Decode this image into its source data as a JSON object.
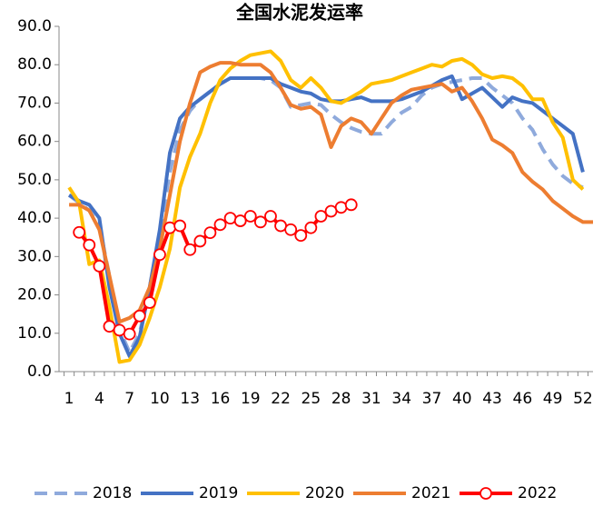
{
  "chart_data": {
    "type": "line",
    "title": "全国水泥发运率",
    "x": [
      1,
      2,
      3,
      4,
      5,
      6,
      7,
      8,
      9,
      10,
      11,
      12,
      13,
      14,
      15,
      16,
      17,
      18,
      19,
      20,
      21,
      22,
      23,
      24,
      25,
      26,
      27,
      28,
      29,
      30,
      31,
      32,
      33,
      34,
      35,
      36,
      37,
      38,
      39,
      40,
      41,
      42,
      43,
      44,
      45,
      46,
      47,
      48,
      49,
      50,
      51,
      52,
      53
    ],
    "xlim": [
      0,
      53
    ],
    "xticks": [
      1,
      4,
      7,
      10,
      13,
      16,
      19,
      22,
      25,
      28,
      31,
      34,
      37,
      40,
      43,
      46,
      49,
      52
    ],
    "ylim": [
      0,
      90
    ],
    "yticks": [
      {
        "value": 0,
        "label": "0.0"
      },
      {
        "value": 10,
        "label": "10.0"
      },
      {
        "value": 20,
        "label": "20.0"
      },
      {
        "value": 30,
        "label": "30.0"
      },
      {
        "value": 40,
        "label": "40.0"
      },
      {
        "value": 50,
        "label": "50.0"
      },
      {
        "value": 60,
        "label": "60.0"
      },
      {
        "value": 70,
        "label": "70.0"
      },
      {
        "value": 80,
        "label": "80.0"
      },
      {
        "value": 90,
        "label": "90.0"
      }
    ],
    "legend": "bottom",
    "series": [
      {
        "name": "2018",
        "color": "#8faadc",
        "style": "dashed",
        "values": [
          46,
          44,
          42,
          38,
          25,
          11,
          5,
          10,
          22,
          36,
          52,
          63,
          68,
          71,
          73,
          75,
          76.5,
          76.5,
          76.5,
          76.5,
          76,
          74,
          69,
          69.5,
          70,
          69.5,
          67,
          65,
          63.5,
          62.5,
          62,
          62,
          65,
          67.5,
          69,
          72,
          74,
          75,
          75.5,
          76,
          76.5,
          76.5,
          74,
          72,
          70,
          66,
          63,
          58,
          54,
          51,
          49,
          48,
          null
        ]
      },
      {
        "name": "2019",
        "color": "#4472c4",
        "values": [
          46,
          44.5,
          43.5,
          40,
          22,
          10,
          4,
          9,
          22,
          37,
          57,
          66,
          69,
          71,
          73,
          75,
          76.5,
          76.5,
          76.5,
          76.5,
          76.5,
          75,
          74,
          73,
          72.5,
          71,
          70.5,
          70.5,
          71,
          71.5,
          70.5,
          70.5,
          70.5,
          71,
          72,
          73,
          74.5,
          76,
          77,
          71,
          72.5,
          74,
          71.5,
          69,
          71.5,
          70.5,
          70,
          68,
          66,
          64,
          62,
          52,
          null
        ]
      },
      {
        "name": "2020",
        "color": "#ffc000",
        "values": [
          48,
          44,
          28,
          29,
          17,
          2.5,
          3,
          7,
          14,
          22,
          32,
          48,
          56,
          62,
          70,
          76,
          79,
          81,
          82.5,
          83,
          83.5,
          81,
          76,
          74,
          76.5,
          74,
          70.5,
          70,
          71.5,
          73,
          75,
          75.5,
          76,
          77,
          78,
          79,
          80,
          79.5,
          81,
          81.5,
          80,
          77.5,
          76.5,
          77,
          76.5,
          74.5,
          71,
          71,
          65,
          61,
          50,
          47.5,
          null
        ]
      },
      {
        "name": "2021",
        "color": "#ed7d31",
        "values": [
          43.5,
          43.5,
          42,
          37,
          25,
          13,
          14,
          16,
          22,
          32,
          46,
          60,
          70,
          78,
          79.5,
          80.5,
          80.5,
          80,
          80,
          80,
          78,
          74,
          69.5,
          68.5,
          69,
          67,
          58.5,
          64,
          66,
          65,
          62,
          66,
          70,
          72,
          73.5,
          74,
          74.5,
          75,
          73,
          74,
          70.5,
          66,
          60.5,
          59,
          57,
          52,
          49.5,
          47.5,
          44.5,
          42.5,
          40.5,
          39,
          39
        ]
      },
      {
        "name": "2022",
        "color": "#ff0000",
        "marker": true,
        "values": [
          null,
          36.3,
          33,
          27.5,
          11.8,
          10.8,
          9.8,
          14.5,
          18,
          30.5,
          37.5,
          38,
          31.8,
          34,
          36.2,
          38.3,
          40,
          39.3,
          40.5,
          39,
          40.5,
          38,
          37,
          35.5,
          37.5,
          40.5,
          41.8,
          42.8,
          43.5,
          null,
          null,
          null,
          null,
          null,
          null,
          null,
          null,
          null,
          null,
          null,
          null,
          null,
          null,
          null,
          null,
          null,
          null,
          null,
          null,
          null,
          null,
          null,
          null
        ]
      }
    ]
  }
}
